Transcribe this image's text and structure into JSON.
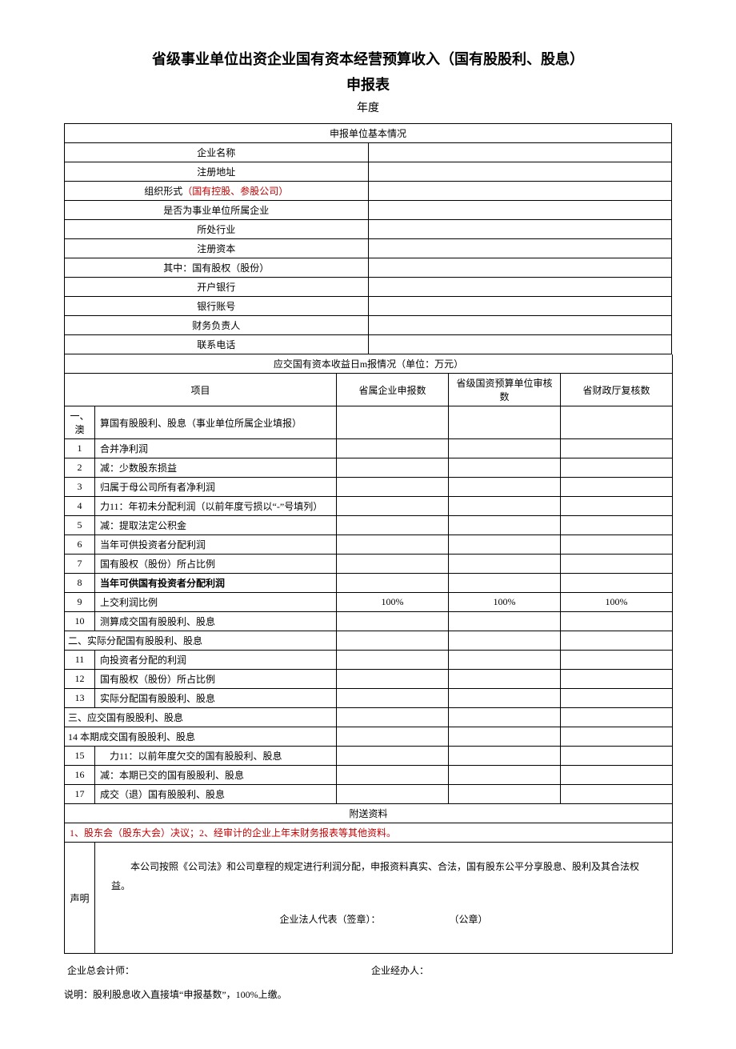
{
  "title_line1": "省级事业单位出资企业国有资本经营预算收入（国有股股利、股息）",
  "title_line2": "申报表",
  "year_label": "年度",
  "basic_info_header": "申报单位基本情况",
  "basic_rows": [
    {
      "label_pre": "企业名称",
      "label_red": "",
      "value": ""
    },
    {
      "label_pre": "注册地址",
      "label_red": "",
      "value": ""
    },
    {
      "label_pre": "组织形式",
      "label_red": "（国有控股、参股公司）",
      "value": ""
    },
    {
      "label_pre": "是否为事业单位所属企业",
      "label_red": "",
      "value": ""
    },
    {
      "label_pre": "所处行业",
      "label_red": "",
      "value": ""
    },
    {
      "label_pre": "注册资本",
      "label_red": "",
      "value": ""
    },
    {
      "label_pre": "其中：国有股权（股份）",
      "label_red": "",
      "value": ""
    },
    {
      "label_pre": "开户银行",
      "label_red": "",
      "value": ""
    },
    {
      "label_pre": "银行账号",
      "label_red": "",
      "value": ""
    },
    {
      "label_pre": "财务负责人",
      "label_red": "",
      "value": ""
    },
    {
      "label_pre": "联系电话",
      "label_red": "",
      "value": ""
    }
  ],
  "income_header": "应交国有资本收益日m报情况（单位：万元）",
  "col_project": "项目",
  "col_v1": "省属企业申报数",
  "col_v2": "省级国资预算单位审核数",
  "col_v3": "省财政厅复核数",
  "rows": [
    {
      "num": "一、澳",
      "label": "算国有股股利、股息（事业单位所属企业填报）",
      "v1": "",
      "v2": "",
      "v3": ""
    },
    {
      "num": "1",
      "label": "合并净利润",
      "v1": "",
      "v2": "",
      "v3": ""
    },
    {
      "num": "2",
      "label": "减：少数股东损益",
      "v1": "",
      "v2": "",
      "v3": ""
    },
    {
      "num": "3",
      "label": "归属于母公司所有者净利润",
      "v1": "",
      "v2": "",
      "v3": ""
    },
    {
      "num": "4",
      "label": "力11：年初未分配利润（以前年度亏损以“-”号填列）",
      "v1": "",
      "v2": "",
      "v3": ""
    },
    {
      "num": "5",
      "label": "减：提取法定公积金",
      "v1": "",
      "v2": "",
      "v3": ""
    },
    {
      "num": "6",
      "label": "当年可供投资者分配利润",
      "v1": "",
      "v2": "",
      "v3": ""
    },
    {
      "num": "7",
      "label": "国有股权（股份）所占比例",
      "v1": "",
      "v2": "",
      "v3": ""
    },
    {
      "num": "8",
      "label": "当年可供国有投资者分配利润",
      "v1": "",
      "v2": "",
      "v3": "",
      "bold": true
    },
    {
      "num": "9",
      "label": "上交利润比例",
      "v1": "100%",
      "v2": "100%",
      "v3": "100%"
    },
    {
      "num": "10",
      "label": "测算成交国有股股利、股息",
      "v1": "",
      "v2": "",
      "v3": ""
    },
    {
      "num": "二、实际分配国有股股利、股息",
      "span": true
    },
    {
      "num": "11",
      "label": "向投资者分配的利润",
      "v1": "",
      "v2": "",
      "v3": ""
    },
    {
      "num": "12",
      "label": "国有股权（股份）所占比例",
      "v1": "",
      "v2": "",
      "v3": ""
    },
    {
      "num": "13",
      "label": "实际分配国有股股利、股息",
      "v1": "",
      "v2": "",
      "v3": ""
    },
    {
      "num": "三、应交国有股股利、股息",
      "span": true
    },
    {
      "num": "14 本期成交国有股股利、股息",
      "span": true
    },
    {
      "num": "15",
      "label": "　力11：以前年度欠交的国有股股利、股息",
      "v1": "",
      "v2": "",
      "v3": ""
    },
    {
      "num": "16",
      "label": "减：本期已交的国有股股利、股息",
      "v1": "",
      "v2": "",
      "v3": ""
    },
    {
      "num": "17",
      "label": "成交（退）国有股股利、股息",
      "v1": "",
      "v2": "",
      "v3": ""
    }
  ],
  "attach_header": "附送资料",
  "attach_body": "1、股东会（股东大会）决议；2、经审计的企业上年末财务报表等其他资料。",
  "decl_label": "声明",
  "decl_text": "本公司按照《公司法》和公司章程的规定进行利润分配，申报资料真实、合法，国有股东公平分享股息、股利及其合法权益。",
  "stamp_left": "企业法人代表（签章）：",
  "stamp_right": "（公章）",
  "foot_left": "企业总会计师：",
  "foot_right": "企业经办人：",
  "note": "说明：股利股息收入直接填“申报基数”，100%上缴。"
}
